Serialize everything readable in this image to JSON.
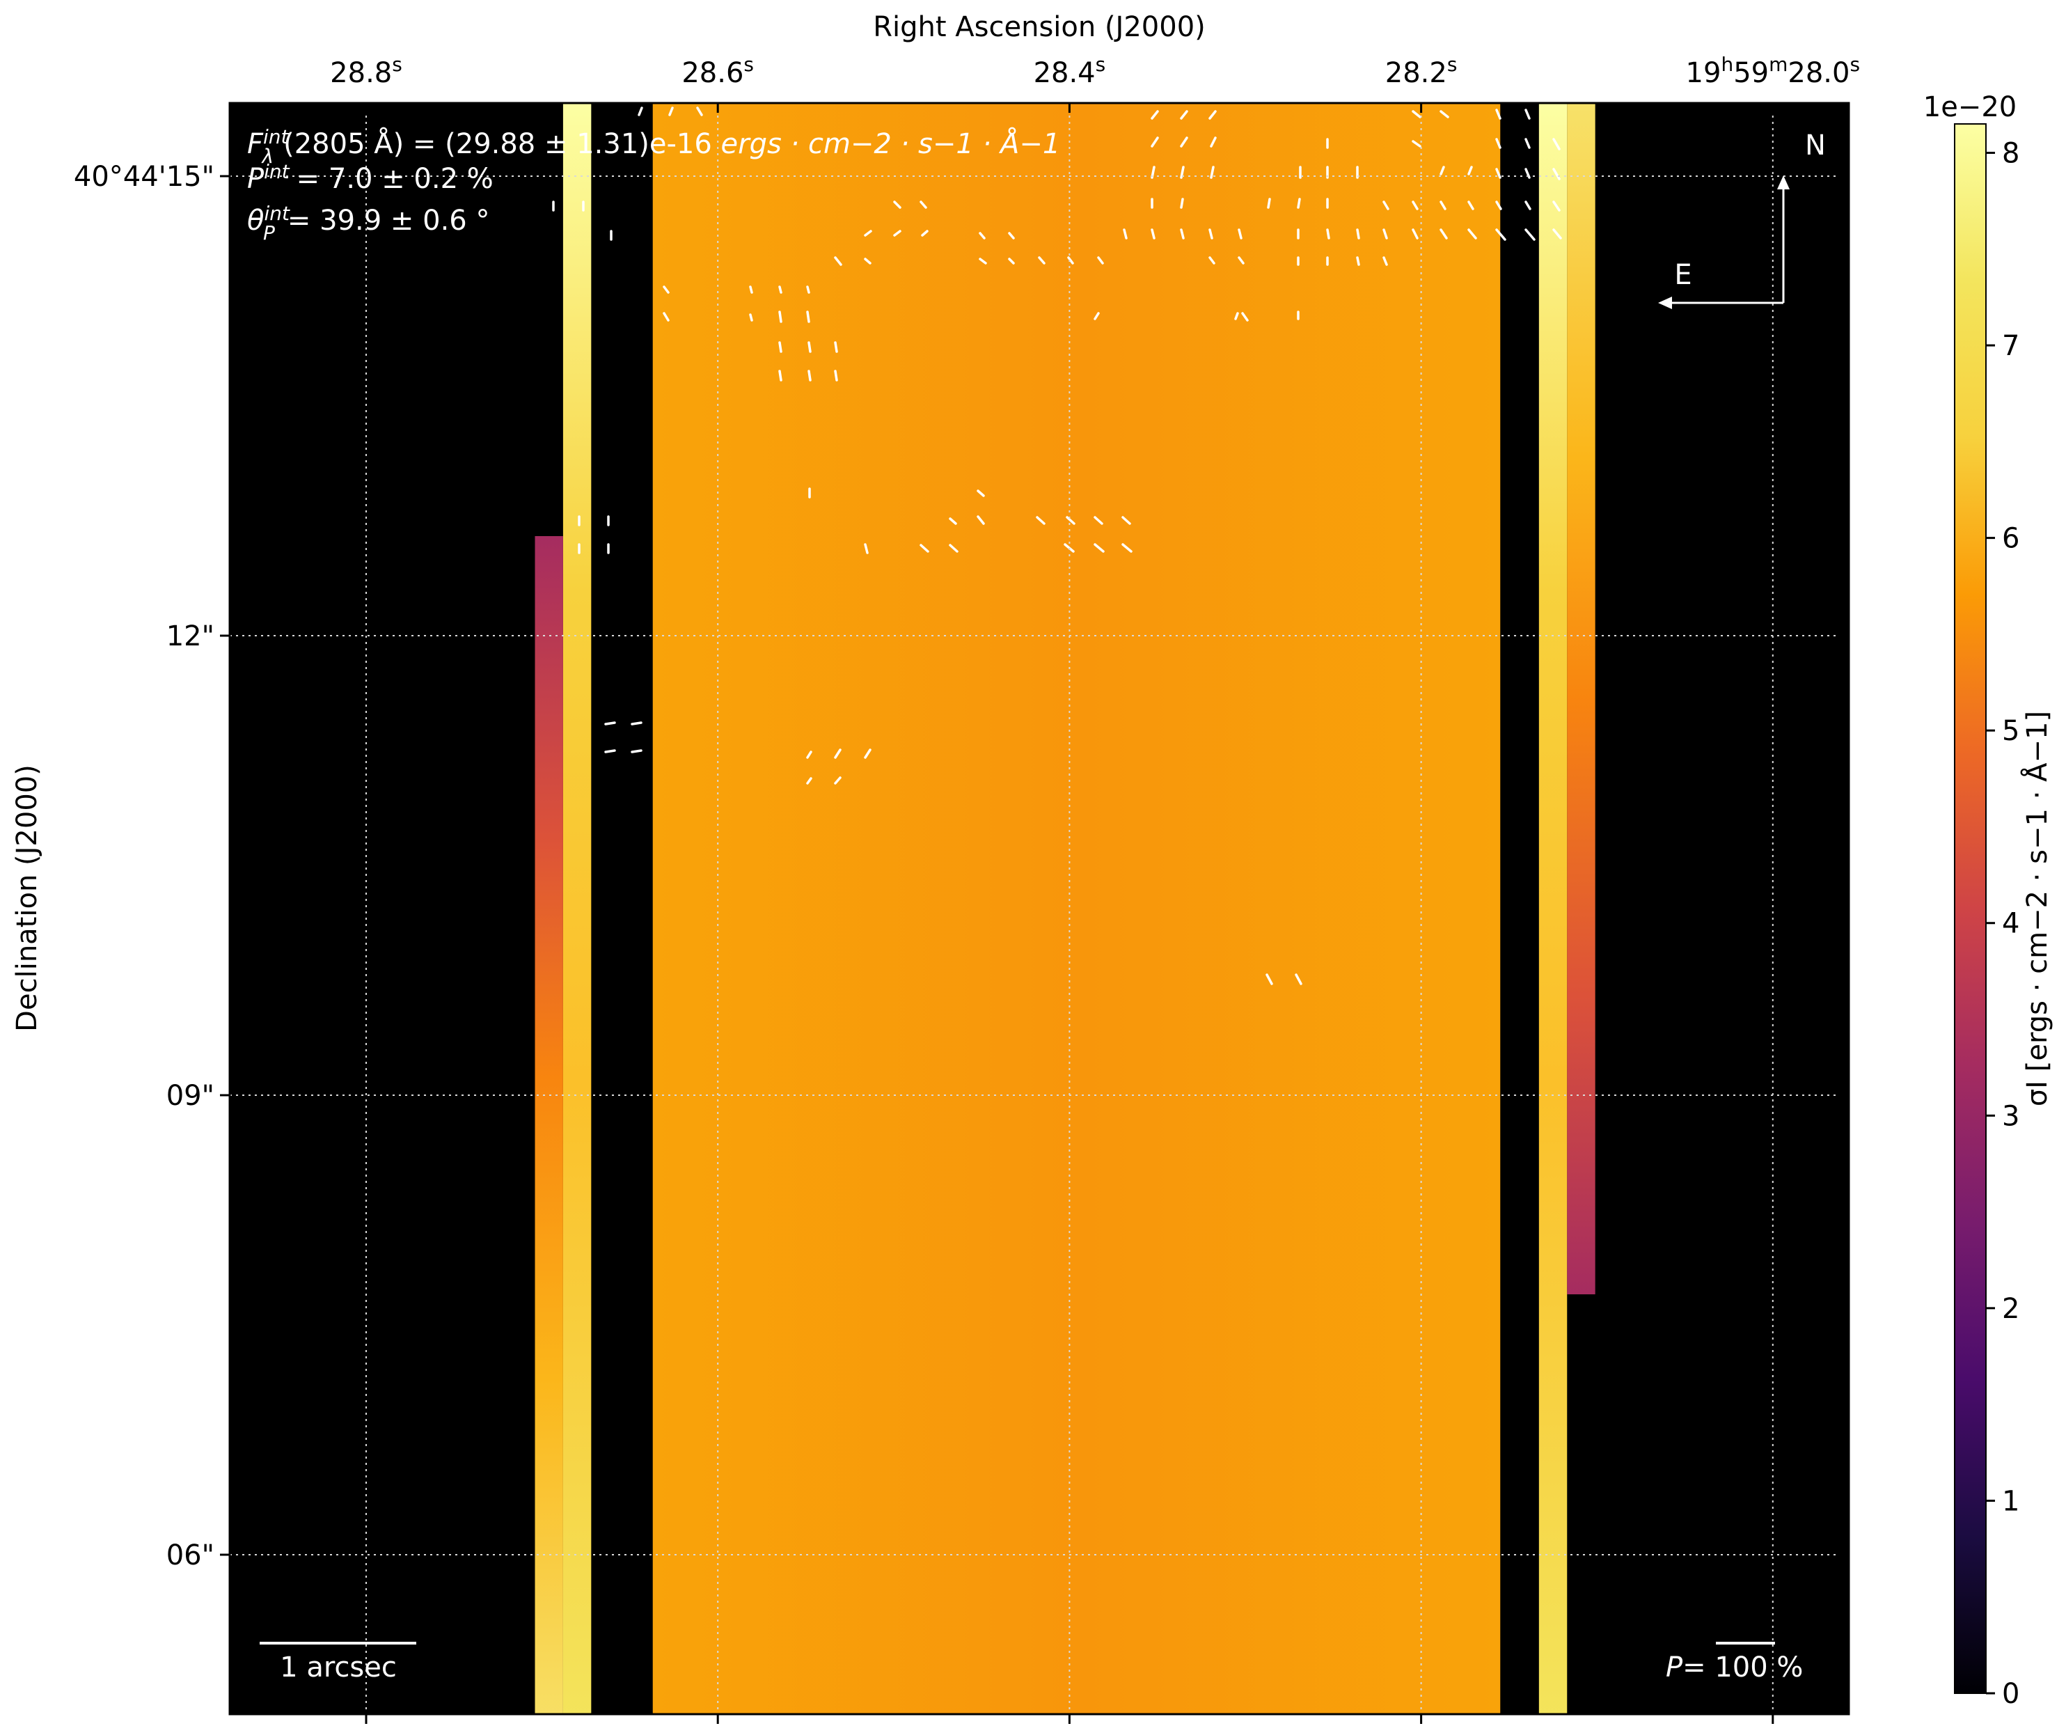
{
  "chart_data": {
    "type": "heatmap",
    "xlabel": "Right Ascension (J2000)",
    "ylabel": "Declination (J2000)",
    "x_ticks": [
      {
        "value": 28.8,
        "label": "28.8",
        "sup": "s"
      },
      {
        "value": 28.6,
        "label": "28.6",
        "sup": "s"
      },
      {
        "value": 28.4,
        "label": "28.4",
        "sup": "s"
      },
      {
        "value": 28.2,
        "label": "28.2",
        "sup": "s"
      },
      {
        "value": 28.0,
        "label": "19h59m28.0s"
      }
    ],
    "y_ticks": [
      {
        "value": 15,
        "label": "40°44'15\""
      },
      {
        "value": 12,
        "label": "12\""
      },
      {
        "value": 9,
        "label": "09\""
      },
      {
        "value": 6,
        "label": "06\""
      }
    ],
    "colorbar": {
      "label": "σI [ergs · cm−2 · s−1 · Å−1]",
      "multiplier": "1e−20",
      "ticks": [
        "0",
        "1",
        "2",
        "3",
        "4",
        "5",
        "6",
        "7",
        "8"
      ],
      "range": [
        0,
        8.15
      ],
      "colormap": "inferno"
    },
    "annotations": {
      "flux_prefix": "F",
      "flux_sub": "λ",
      "flux_sup": "int",
      "flux_value": "(2805 Å) = (29.88 ± 1.31)e-16",
      "flux_units": "ergs · cm−2 · s−1 · Å−1",
      "pol_label": "P",
      "pol_sup": "int",
      "pol_value": "= 7.0 ± 0.2 %",
      "theta_label": "θ",
      "theta_sub": "P",
      "theta_sup": "int",
      "theta_value": "= 39.9 ± 0.6 °",
      "north": "N",
      "east": "E",
      "scale_bar": "1 arcsec",
      "pol_scale_italic": "P",
      "pol_scale_value": "= 100 %"
    },
    "map_regions": [
      {
        "name": "data-core",
        "ra": [
          28.155,
          28.637
        ],
        "dec": [
          4.8,
          15.5
        ],
        "sigma": 6.5
      },
      {
        "name": "edge-column-left",
        "ra": [
          28.672,
          28.688
        ],
        "dec": [
          4.8,
          15.5
        ],
        "sigma": 7.9
      },
      {
        "name": "edge-column-right",
        "ra": [
          28.117,
          28.133
        ],
        "dec": [
          4.8,
          15.5
        ],
        "sigma": 7.9
      },
      {
        "name": "left-strip",
        "ra": [
          28.688,
          28.704
        ],
        "dec": [
          4.8,
          12.65
        ],
        "sigma": [
          3.4,
          7.6
        ]
      },
      {
        "name": "right-strip",
        "ra": [
          28.101,
          28.117
        ],
        "dec": [
          7.7,
          15.5
        ],
        "sigma": [
          3.4,
          7.6
        ]
      }
    ],
    "grid": true
  }
}
